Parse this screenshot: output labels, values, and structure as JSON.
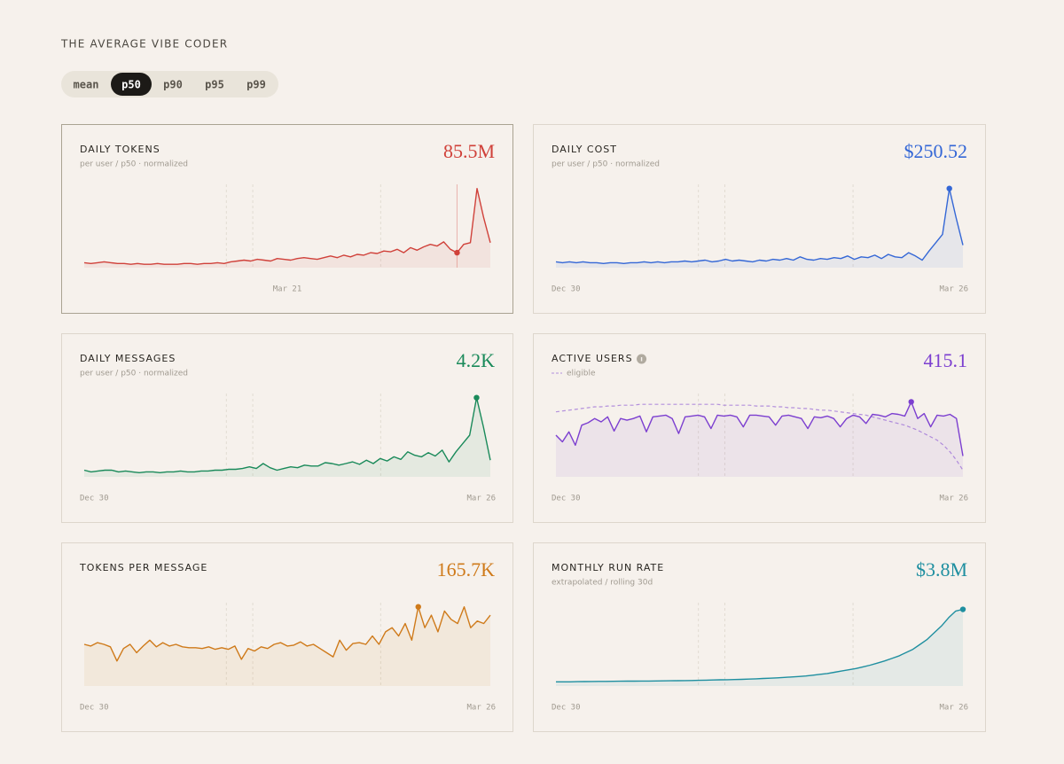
{
  "header": {
    "title": "THE AVERAGE VIBE CODER"
  },
  "toggle": {
    "options": [
      "mean",
      "p50",
      "p90",
      "p95",
      "p99"
    ],
    "selected_index": 1
  },
  "chart_data": [
    {
      "type": "line",
      "title": "DAILY TOKENS",
      "subtitle": "per user / p50 · normalized",
      "headline": "85.5M",
      "color": "#d0413a",
      "x_labels": [
        "Mar 21"
      ],
      "hover": true,
      "marker_index": 56,
      "ylim": [
        0,
        100
      ],
      "series": [
        {
          "values": [
            6,
            5,
            6,
            7,
            6,
            5,
            5,
            4,
            5,
            4,
            4,
            5,
            4,
            4,
            4,
            5,
            5,
            4,
            5,
            5,
            6,
            5,
            7,
            8,
            9,
            8,
            10,
            9,
            8,
            11,
            10,
            9,
            11,
            12,
            11,
            10,
            12,
            14,
            12,
            15,
            13,
            16,
            15,
            18,
            17,
            20,
            19,
            22,
            18,
            24,
            21,
            25,
            28,
            26,
            31,
            22,
            18,
            28,
            30,
            95,
            60,
            30
          ]
        }
      ]
    },
    {
      "type": "line",
      "title": "DAILY COST",
      "subtitle": "per user / p50 · normalized",
      "headline": "$250.52",
      "color": "#3467d6",
      "x_labels": [
        "Dec 30",
        "Mar 26"
      ],
      "marker_index": 58,
      "ylim": [
        0,
        100
      ],
      "series": [
        {
          "values": [
            7,
            6,
            7,
            6,
            7,
            6,
            6,
            5,
            6,
            6,
            5,
            6,
            6,
            7,
            6,
            7,
            6,
            7,
            7,
            8,
            7,
            8,
            9,
            7,
            8,
            10,
            8,
            9,
            8,
            7,
            9,
            8,
            10,
            9,
            11,
            9,
            13,
            10,
            9,
            11,
            10,
            12,
            11,
            14,
            10,
            13,
            12,
            15,
            11,
            16,
            13,
            12,
            18,
            14,
            9,
            20,
            30,
            40,
            95,
            60,
            27
          ]
        }
      ]
    },
    {
      "type": "line",
      "title": "DAILY MESSAGES",
      "subtitle": "per user / p50 · normalized",
      "headline": "4.2K",
      "color": "#1a8a5a",
      "x_labels": [
        "Dec 30",
        "Mar 26"
      ],
      "marker_index": 57,
      "ylim": [
        0,
        100
      ],
      "series": [
        {
          "values": [
            8,
            6,
            7,
            8,
            8,
            6,
            7,
            6,
            5,
            6,
            6,
            5,
            6,
            6,
            7,
            6,
            6,
            7,
            7,
            8,
            8,
            9,
            9,
            10,
            12,
            10,
            16,
            11,
            8,
            10,
            12,
            11,
            14,
            13,
            13,
            17,
            16,
            14,
            16,
            18,
            15,
            20,
            16,
            22,
            19,
            24,
            21,
            30,
            26,
            24,
            29,
            25,
            32,
            18,
            30,
            40,
            50,
            95,
            60,
            20
          ]
        }
      ]
    },
    {
      "type": "line",
      "title": "ACTIVE USERS",
      "headline": "415.1",
      "color": "#7c3fd0",
      "x_labels": [
        "Dec 30",
        "Mar 26"
      ],
      "marker_index": 55,
      "ylim": [
        0,
        100
      ],
      "series": [
        {
          "values": [
            50,
            42,
            54,
            38,
            62,
            65,
            70,
            66,
            72,
            55,
            70,
            68,
            70,
            73,
            54,
            72,
            73,
            74,
            70,
            52,
            72,
            73,
            74,
            72,
            58,
            74,
            73,
            74,
            72,
            60,
            74,
            74,
            73,
            72,
            62,
            73,
            74,
            72,
            70,
            58,
            72,
            71,
            73,
            70,
            60,
            70,
            74,
            72,
            64,
            75,
            74,
            72,
            76,
            75,
            73,
            90,
            70,
            76,
            60,
            74,
            73,
            75,
            70,
            25
          ]
        },
        {
          "name": "eligible",
          "dashed": true,
          "values": [
            78,
            79,
            80,
            81,
            82,
            83,
            84,
            84,
            85,
            85,
            86,
            86,
            86,
            87,
            87,
            87,
            87,
            87,
            87,
            87,
            87,
            87,
            87,
            87,
            87,
            87,
            86,
            86,
            86,
            86,
            86,
            85,
            85,
            85,
            84,
            84,
            83,
            83,
            82,
            82,
            81,
            80,
            80,
            79,
            78,
            77,
            76,
            75,
            74,
            72,
            70,
            68,
            66,
            64,
            62,
            59,
            56,
            52,
            48,
            44,
            38,
            30,
            20,
            8
          ]
        }
      ]
    },
    {
      "type": "line",
      "title": "TOKENS PER MESSAGE",
      "headline": "165.7K",
      "color": "#cf7a1a",
      "x_labels": [
        "Dec 30",
        "Mar 26"
      ],
      "marker_index": 51,
      "ylim": [
        0,
        100
      ],
      "series": [
        {
          "values": [
            50,
            48,
            52,
            50,
            47,
            30,
            45,
            50,
            40,
            48,
            55,
            47,
            52,
            48,
            50,
            47,
            46,
            46,
            45,
            47,
            44,
            46,
            44,
            48,
            32,
            45,
            42,
            47,
            45,
            50,
            52,
            48,
            49,
            53,
            48,
            50,
            45,
            40,
            35,
            55,
            43,
            51,
            52,
            50,
            60,
            50,
            65,
            70,
            60,
            75,
            55,
            95,
            70,
            85,
            65,
            90,
            80,
            75,
            95,
            70,
            78,
            75,
            85
          ]
        }
      ]
    },
    {
      "type": "line",
      "title": "MONTHLY RUN RATE",
      "subtitle": "extrapolated / rolling 30d",
      "headline": "$3.8M",
      "color": "#1f8fa0",
      "x_labels": [
        "Dec 30",
        "Mar 26"
      ],
      "marker_index": 57,
      "ylim": [
        0,
        100
      ],
      "series": [
        {
          "values": [
            5,
            5,
            5,
            5.2,
            5.3,
            5.4,
            5.5,
            5.5,
            5.6,
            5.7,
            5.8,
            5.9,
            6,
            6,
            6.1,
            6.2,
            6.3,
            6.4,
            6.5,
            6.6,
            6.8,
            7,
            7.2,
            7.4,
            7.6,
            7.8,
            8,
            8.3,
            8.6,
            9,
            9.4,
            9.8,
            10.3,
            10.8,
            11.4,
            12,
            13,
            14,
            15,
            16.5,
            18,
            19.5,
            21,
            23,
            25,
            27.5,
            30,
            33,
            36,
            40,
            44,
            50,
            56,
            64,
            72,
            82,
            90,
            92
          ]
        }
      ]
    }
  ]
}
